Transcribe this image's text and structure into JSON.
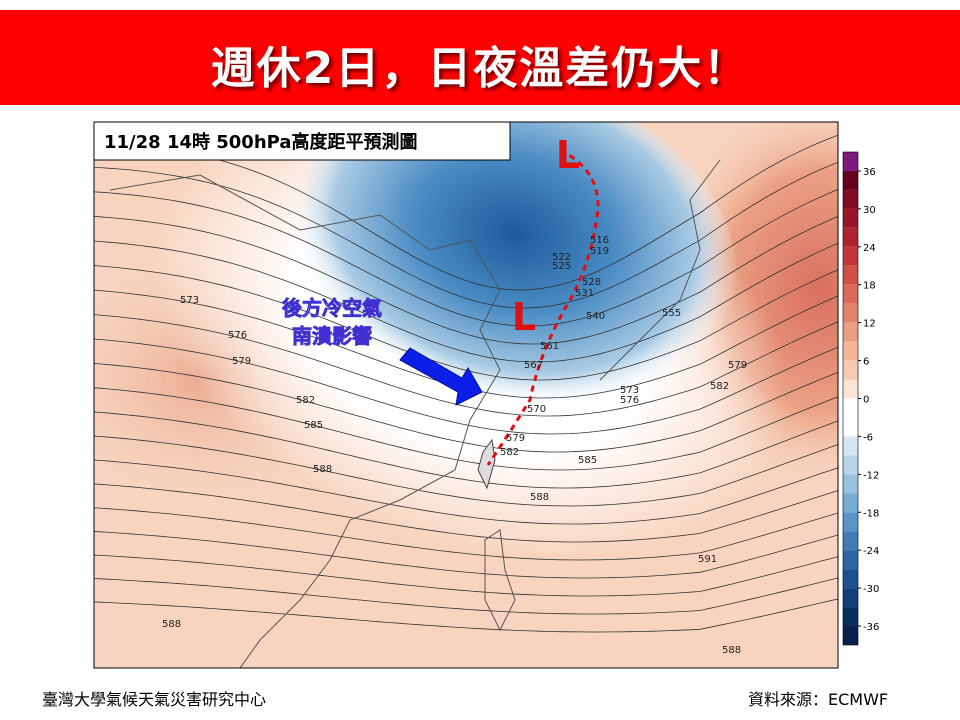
{
  "header": {
    "title": "週休2日，日夜溫差仍大！"
  },
  "map": {
    "title": "11/28 14時 500hPa高度距平預測圖",
    "annotation": [
      "後方冷空氣",
      "南潰影響"
    ],
    "lows": [
      "L",
      "L"
    ],
    "contour_labels": [
      573,
      576,
      579,
      582,
      585,
      588,
      588,
      519,
      516,
      522,
      525,
      528,
      531,
      540,
      555,
      561,
      567,
      570,
      579,
      582,
      585,
      588,
      573,
      576,
      579,
      582,
      591,
      588
    ]
  },
  "colorbar": {
    "lim": [
      -39,
      39
    ],
    "ticks": [
      36,
      30,
      24,
      18,
      12,
      6,
      0,
      -6,
      -12,
      -18,
      -24,
      -30,
      -36
    ],
    "colors": [
      "#7a1a7e",
      "#67001f",
      "#800d25",
      "#99132b",
      "#b0222f",
      "#c13638",
      "#cf5146",
      "#d96a57",
      "#e3846a",
      "#eb9d81",
      "#f2b598",
      "#f7cbb3",
      "#fbe4d6",
      "#ffffff",
      "#ffffff",
      "#d4e6f1",
      "#b7d4e8",
      "#98c1de",
      "#79acd3",
      "#5a95c6",
      "#417cb6",
      "#2d66a4",
      "#1d5290",
      "#133f79",
      "#0b2e62",
      "#08204a"
    ]
  },
  "footer": {
    "left": "臺灣大學氣候天氣災害研究中心",
    "right": "資料來源：ECMWF"
  }
}
